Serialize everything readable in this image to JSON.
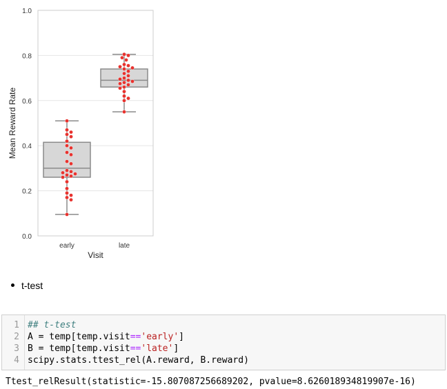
{
  "chart_data": {
    "type": "box+swarm",
    "xlabel": "Visit",
    "ylabel": "Mean Reward Rate",
    "ylim": [
      0.0,
      1.0
    ],
    "yticks": [
      "0.0",
      "0.2",
      "0.4",
      "0.6",
      "0.8",
      "1.0"
    ],
    "categories": [
      "early",
      "late"
    ],
    "grid": true,
    "box": [
      {
        "category": "early",
        "min": 0.095,
        "q1": 0.26,
        "median": 0.3,
        "q3": 0.415,
        "max": 0.51
      },
      {
        "category": "late",
        "min": 0.55,
        "q1": 0.66,
        "median": 0.69,
        "q3": 0.74,
        "max": 0.805
      }
    ],
    "points": [
      {
        "category": "early",
        "values": [
          0.51,
          0.47,
          0.46,
          0.45,
          0.44,
          0.42,
          0.4,
          0.39,
          0.37,
          0.36,
          0.33,
          0.32,
          0.29,
          0.285,
          0.28,
          0.275,
          0.27,
          0.265,
          0.26,
          0.24,
          0.21,
          0.19,
          0.18,
          0.17,
          0.16,
          0.095
        ]
      },
      {
        "category": "late",
        "values": [
          0.805,
          0.8,
          0.79,
          0.78,
          0.76,
          0.755,
          0.75,
          0.745,
          0.74,
          0.73,
          0.72,
          0.71,
          0.7,
          0.695,
          0.69,
          0.685,
          0.68,
          0.675,
          0.67,
          0.66,
          0.655,
          0.64,
          0.62,
          0.61,
          0.6,
          0.55
        ]
      }
    ],
    "colors": {
      "box_fill": "#d7d7d7",
      "box_edge": "#8a8a8a",
      "point": "#e8322e",
      "grid": "#e5e5e5",
      "frame": "#cccccc"
    }
  },
  "bullet": {
    "text": "t-test"
  },
  "code": {
    "lines": [
      {
        "num": "1",
        "parts": [
          {
            "cls": "cmt",
            "text": "## t-test"
          }
        ]
      },
      {
        "num": "2",
        "parts": [
          {
            "cls": "",
            "text": "A = temp[temp.visit"
          },
          {
            "cls": "op",
            "text": "=="
          },
          {
            "cls": "str",
            "text": "'early'"
          },
          {
            "cls": "",
            "text": "]"
          }
        ]
      },
      {
        "num": "3",
        "parts": [
          {
            "cls": "",
            "text": "B = temp[temp.visit"
          },
          {
            "cls": "op",
            "text": "=="
          },
          {
            "cls": "str",
            "text": "'late'"
          },
          {
            "cls": "",
            "text": "]"
          }
        ]
      },
      {
        "num": "4",
        "parts": [
          {
            "cls": "",
            "text": "scipy.stats.ttest_rel(A.reward, B.reward)"
          }
        ]
      }
    ]
  },
  "output": {
    "text": "Ttest_relResult(statistic=-15.807087256689202, pvalue=8.626018934819907e-16)"
  }
}
